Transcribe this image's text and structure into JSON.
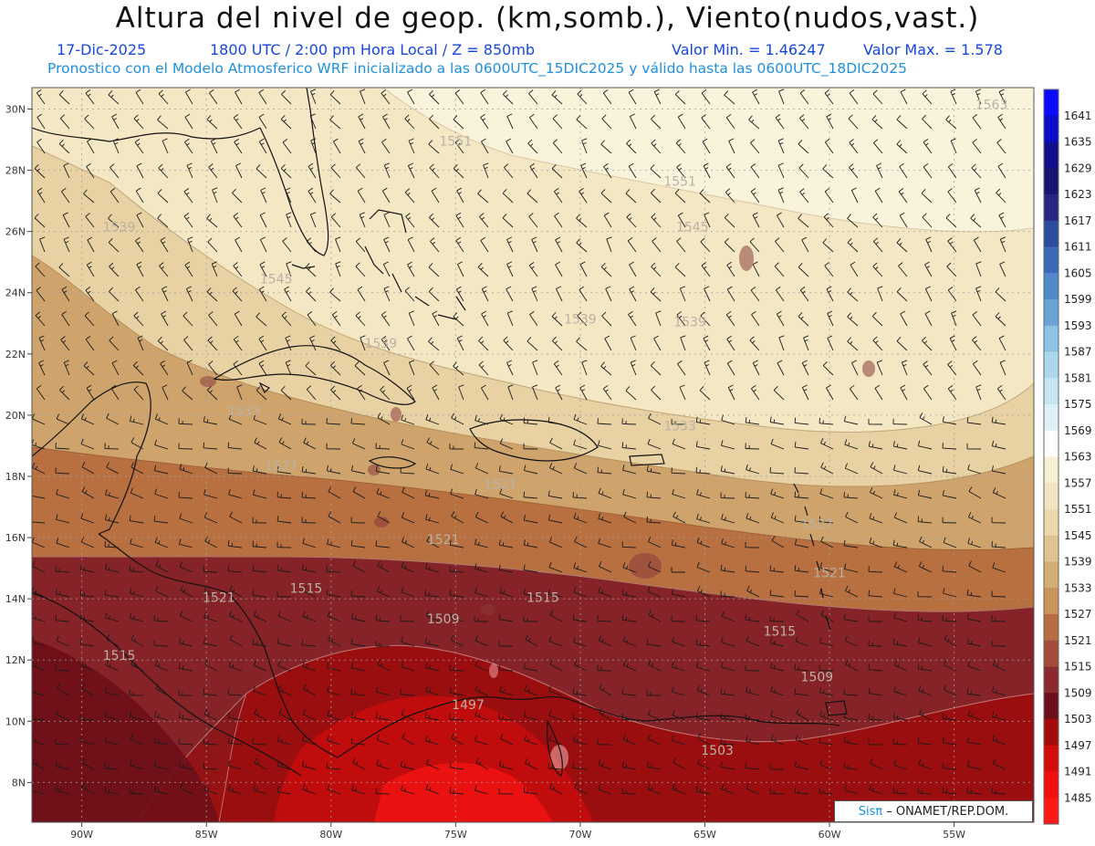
{
  "header": {
    "title": "Altura del nivel de geop. (km,somb.), Viento(nudos,vast.)",
    "date": "17-Dic-2025",
    "time": "1800 UTC / 2:00 pm Hora Local / Z = 850mb",
    "value_min": "Valor Min. = 1.46247",
    "value_max": "Valor Max. = 1.578",
    "model_line": "Pronostico con el Modelo Atmosferico WRF inicializado a las 0600UTC_15DIC2025 y válido hasta las  0600UTC_18DIC2025"
  },
  "map": {
    "lon_range": [
      -92.0,
      -51.8
    ],
    "lat_range": [
      6.7,
      30.7
    ],
    "lon_ticks": [
      "90W",
      "85W",
      "80W",
      "75W",
      "70W",
      "65W",
      "60W",
      "55W"
    ],
    "lon_tick_values": [
      -90,
      -85,
      -80,
      -75,
      -70,
      -65,
      -60,
      -55
    ],
    "lat_ticks": [
      "8N",
      "10N",
      "12N",
      "14N",
      "16N",
      "18N",
      "20N",
      "22N",
      "24N",
      "26N",
      "28N",
      "30N"
    ],
    "lat_tick_values": [
      8,
      10,
      12,
      14,
      16,
      18,
      20,
      22,
      24,
      26,
      28,
      30
    ],
    "contour_labels": [
      {
        "text": "1563",
        "lon": -53.5,
        "lat": 30.0
      },
      {
        "text": "1551",
        "lon": -75.0,
        "lat": 28.8
      },
      {
        "text": "1551",
        "lon": -66.0,
        "lat": 27.5
      },
      {
        "text": "1545",
        "lon": -65.5,
        "lat": 26.0
      },
      {
        "text": "1539",
        "lon": -88.5,
        "lat": 26.0
      },
      {
        "text": "1545",
        "lon": -82.2,
        "lat": 24.3
      },
      {
        "text": "1539",
        "lon": -70.0,
        "lat": 23.0
      },
      {
        "text": "1539",
        "lon": -65.6,
        "lat": 22.9
      },
      {
        "text": "1539",
        "lon": -78.0,
        "lat": 22.2
      },
      {
        "text": "1533",
        "lon": -83.5,
        "lat": 20.0
      },
      {
        "text": "1533",
        "lon": -66.0,
        "lat": 19.5
      },
      {
        "text": "1527",
        "lon": -82.0,
        "lat": 18.2
      },
      {
        "text": "1521",
        "lon": -73.2,
        "lat": 17.6
      },
      {
        "text": "1527",
        "lon": -60.5,
        "lat": 16.3
      },
      {
        "text": "1521",
        "lon": -75.5,
        "lat": 15.8
      },
      {
        "text": "1521",
        "lon": -60.0,
        "lat": 14.7
      },
      {
        "text": "1515",
        "lon": -81.0,
        "lat": 14.2
      },
      {
        "text": "1521",
        "lon": -84.5,
        "lat": 13.9
      },
      {
        "text": "1515",
        "lon": -71.5,
        "lat": 13.9
      },
      {
        "text": "1509",
        "lon": -75.5,
        "lat": 13.2
      },
      {
        "text": "1515",
        "lon": -62.0,
        "lat": 12.8
      },
      {
        "text": "1515",
        "lon": -88.5,
        "lat": 12.0
      },
      {
        "text": "1509",
        "lon": -60.5,
        "lat": 11.3
      },
      {
        "text": "1497",
        "lon": -74.5,
        "lat": 10.4
      },
      {
        "text": "1503",
        "lon": -64.5,
        "lat": 8.9
      }
    ]
  },
  "colorbar": {
    "levels": [
      "1641",
      "1635",
      "1629",
      "1623",
      "1617",
      "1611",
      "1605",
      "1599",
      "1593",
      "1587",
      "1581",
      "1575",
      "1569",
      "1563",
      "1557",
      "1551",
      "1545",
      "1539",
      "1533",
      "1527",
      "1521",
      "1515",
      "1509",
      "1503",
      "1497",
      "1491",
      "1485"
    ],
    "colors": [
      "#0a0aff",
      "#0b0bcc",
      "#10108f",
      "#161670",
      "#262680",
      "#2d4ea0",
      "#3a6ab8",
      "#4f89c7",
      "#6aa4d4",
      "#8cc3e3",
      "#acd8ee",
      "#c5e6f2",
      "#dcf2f8",
      "#ffffff",
      "#f8f0d2",
      "#f1e5c1",
      "#ebd8ac",
      "#e0c48f",
      "#d4ad72",
      "#c79459",
      "#b76d43",
      "#a34a3a",
      "#8a2a2e",
      "#6b1018",
      "#a80b0b",
      "#d40c0c",
      "#f01010",
      "#ff1818"
    ]
  },
  "credit": {
    "sis": "Sisπ",
    "text": "– ONAMET/REP.DOM."
  }
}
